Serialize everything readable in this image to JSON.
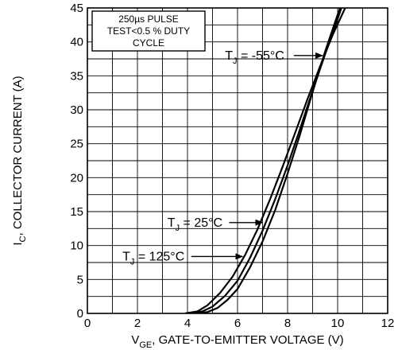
{
  "chart_data": {
    "type": "line",
    "xlabel": {
      "prefix": "V",
      "sub": "GE",
      "rest": ", GATE-TO-EMITTER  VOLTAGE (V)"
    },
    "ylabel": {
      "prefix": "I",
      "sub": "C",
      "rest": ", COLLECTOR  CURRENT (A)"
    },
    "xlim": [
      0,
      12
    ],
    "ylim": [
      0,
      45
    ],
    "xticks": [
      0,
      2,
      4,
      6,
      8,
      10,
      12
    ],
    "yticks": [
      0,
      5,
      10,
      15,
      20,
      25,
      30,
      35,
      40,
      45
    ],
    "grid": true,
    "legend_box": [
      "250µs PULSE",
      "TEST<0.5 % DUTY",
      "CYCLE"
    ],
    "series": [
      {
        "name": "TJ = -55°C",
        "label": {
          "prefix": "T",
          "sub": "J",
          "rest": " = -55°C"
        },
        "points": [
          [
            4.3,
            0
          ],
          [
            4.8,
            0.2
          ],
          [
            5.2,
            0.8
          ],
          [
            5.6,
            2
          ],
          [
            6.0,
            3.6
          ],
          [
            6.5,
            6.8
          ],
          [
            7.0,
            10.6
          ],
          [
            7.5,
            15.2
          ],
          [
            8.0,
            20.6
          ],
          [
            8.5,
            26.4
          ],
          [
            9.0,
            32.6
          ],
          [
            9.5,
            38.6
          ],
          [
            10.0,
            44.0
          ],
          [
            10.1,
            45
          ]
        ]
      },
      {
        "name": "TJ = 25°C",
        "label": {
          "prefix": "T",
          "sub": "J",
          "rest": " = 25°C"
        },
        "points": [
          [
            4.1,
            0
          ],
          [
            4.6,
            0.3
          ],
          [
            5.0,
            1
          ],
          [
            5.5,
            2.6
          ],
          [
            6.0,
            4.8
          ],
          [
            6.5,
            8.2
          ],
          [
            7.0,
            12.2
          ],
          [
            7.5,
            16.8
          ],
          [
            8.0,
            21.8
          ],
          [
            8.5,
            27.2
          ],
          [
            9.0,
            32.8
          ],
          [
            9.5,
            38.2
          ],
          [
            10.0,
            43.4
          ],
          [
            10.15,
            45
          ]
        ]
      },
      {
        "name": "TJ = 125°C",
        "label": {
          "prefix": "T",
          "sub": "J",
          "rest": " = 125°C"
        },
        "points": [
          [
            3.9,
            0
          ],
          [
            4.4,
            0.3
          ],
          [
            4.8,
            1.2
          ],
          [
            5.3,
            3
          ],
          [
            5.8,
            5.4
          ],
          [
            6.3,
            8.6
          ],
          [
            6.8,
            12.4
          ],
          [
            7.3,
            16.8
          ],
          [
            7.8,
            21.6
          ],
          [
            8.3,
            26.6
          ],
          [
            8.8,
            31.6
          ],
          [
            9.3,
            36.4
          ],
          [
            9.8,
            41.0
          ],
          [
            10.3,
            45
          ]
        ]
      }
    ],
    "annotations": [
      {
        "series": 0,
        "text_at": [
          5.5,
          37.4
        ],
        "arrow_to": [
          9.4,
          37.4
        ]
      },
      {
        "series": 1,
        "text_at": [
          3.2,
          12.8
        ],
        "arrow_to": [
          7.0,
          12.8
        ]
      },
      {
        "series": 2,
        "text_at": [
          1.4,
          7.8
        ],
        "arrow_to": [
          6.2,
          7.8
        ]
      }
    ]
  }
}
